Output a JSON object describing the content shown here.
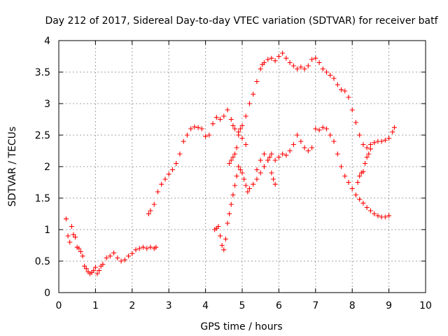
{
  "chart_data": {
    "type": "scatter",
    "title": "Day 212 of 2017, Sidereal Day-to-day VTEC variation (SDTVAR) for receiver batf",
    "xlabel": "GPS time / hours",
    "ylabel": "SDTVAR / TECUs",
    "xlim": [
      0,
      10
    ],
    "ylim": [
      0,
      4
    ],
    "xticks": [
      "0",
      "1",
      "2",
      "3",
      "4",
      "5",
      "6",
      "7",
      "8",
      "9",
      "10"
    ],
    "yticks": [
      "0",
      "0.5",
      "1",
      "1.5",
      "2",
      "2.5",
      "3",
      "3.5",
      "4"
    ],
    "grid": true,
    "marker": "+",
    "color": "#ff0000",
    "series": [
      {
        "x": [
          0.2,
          0.25,
          0.3,
          0.35,
          0.4,
          0.45,
          0.5,
          0.55,
          0.6,
          0.65,
          0.7,
          0.75,
          0.8,
          0.85,
          0.9,
          0.95,
          1.0,
          1.05,
          1.1,
          1.15,
          1.2,
          1.3,
          1.4,
          1.5,
          1.6,
          1.7,
          1.8,
          1.9,
          2.0,
          2.1,
          2.2,
          2.3,
          2.4,
          2.5,
          2.6,
          2.65
        ],
        "y": [
          1.17,
          0.9,
          0.8,
          1.05,
          0.92,
          0.88,
          0.72,
          0.7,
          0.65,
          0.58,
          0.42,
          0.38,
          0.33,
          0.3,
          0.32,
          0.35,
          0.4,
          0.3,
          0.35,
          0.42,
          0.45,
          0.55,
          0.58,
          0.63,
          0.55,
          0.5,
          0.52,
          0.58,
          0.62,
          0.68,
          0.7,
          0.72,
          0.7,
          0.72,
          0.7,
          0.72
        ]
      },
      {
        "x": [
          2.45,
          2.5,
          2.6,
          2.7,
          2.8,
          2.9,
          3.0,
          3.1,
          3.2,
          3.3,
          3.4,
          3.5,
          3.6,
          3.7,
          3.8,
          3.9,
          4.0,
          4.1,
          4.2,
          4.3,
          4.4,
          4.5,
          4.6,
          4.7,
          4.75,
          4.8,
          4.9,
          5.0,
          5.1
        ],
        "y": [
          1.25,
          1.3,
          1.4,
          1.6,
          1.72,
          1.8,
          1.88,
          1.95,
          2.05,
          2.2,
          2.4,
          2.5,
          2.6,
          2.63,
          2.62,
          2.6,
          2.48,
          2.5,
          2.68,
          2.78,
          2.75,
          2.8,
          2.9,
          2.75,
          2.65,
          2.6,
          2.55,
          2.45,
          2.35
        ]
      },
      {
        "x": [
          4.25,
          4.3,
          4.35,
          4.4,
          4.45,
          4.5,
          4.55,
          4.6,
          4.65,
          4.7,
          4.75,
          4.8,
          4.85,
          4.9,
          4.95,
          5.0,
          5.05,
          5.1,
          5.15,
          5.2,
          5.3,
          5.4,
          5.5,
          5.6,
          5.7,
          5.75,
          5.8,
          5.9,
          6.0,
          6.1,
          6.2,
          6.3,
          6.4,
          6.5,
          6.6,
          6.7,
          6.8,
          6.9,
          7.0,
          7.1,
          7.2,
          7.3,
          7.4,
          7.5,
          7.6,
          7.7,
          7.8,
          7.9,
          8.0,
          8.1,
          8.2,
          8.3,
          8.4,
          8.5,
          8.6,
          8.7,
          8.8,
          8.9,
          9.0
        ],
        "y": [
          1.0,
          1.02,
          1.05,
          0.9,
          0.75,
          0.68,
          0.85,
          1.1,
          1.25,
          1.4,
          1.55,
          1.7,
          1.85,
          2.0,
          1.95,
          1.9,
          1.8,
          1.7,
          1.6,
          1.65,
          1.72,
          1.8,
          1.9,
          2.0,
          2.1,
          2.15,
          2.2,
          2.1,
          2.15,
          2.2,
          2.18,
          2.25,
          2.35,
          2.5,
          2.4,
          2.3,
          2.25,
          2.3,
          2.6,
          2.58,
          2.62,
          2.6,
          2.5,
          2.4,
          2.2,
          2.0,
          1.85,
          1.75,
          1.65,
          1.55,
          1.48,
          1.42,
          1.35,
          1.3,
          1.25,
          1.22,
          1.2,
          1.2,
          1.22
        ]
      },
      {
        "x": [
          4.65,
          4.7,
          4.75,
          4.8,
          4.85,
          4.9,
          4.95,
          5.0,
          5.1,
          5.2,
          5.3,
          5.4,
          5.5,
          5.55,
          5.6,
          5.7,
          5.8,
          5.9,
          6.0,
          6.1,
          6.2,
          6.3,
          6.4,
          6.5,
          6.6,
          6.7,
          6.8,
          6.9,
          7.0,
          7.1,
          7.2,
          7.3,
          7.4,
          7.5,
          7.6,
          7.7,
          7.8,
          7.9,
          8.0,
          8.1,
          8.2,
          8.3,
          8.4,
          8.5,
          8.6,
          8.7,
          8.8,
          8.9,
          9.0,
          9.1,
          9.15
        ],
        "y": [
          2.05,
          2.1,
          2.15,
          2.2,
          2.3,
          2.5,
          2.6,
          2.65,
          2.8,
          3.0,
          3.15,
          3.35,
          3.55,
          3.62,
          3.65,
          3.7,
          3.72,
          3.68,
          3.75,
          3.8,
          3.72,
          3.65,
          3.6,
          3.55,
          3.58,
          3.55,
          3.6,
          3.7,
          3.72,
          3.65,
          3.55,
          3.5,
          3.45,
          3.4,
          3.3,
          3.22,
          3.2,
          3.1,
          2.9,
          2.7,
          2.5,
          2.35,
          2.3,
          2.35,
          2.38,
          2.4,
          2.4,
          2.42,
          2.45,
          2.55,
          2.62
        ]
      },
      {
        "x": [
          5.4,
          5.5,
          5.6,
          5.7,
          5.8,
          5.85,
          5.9
        ],
        "y": [
          1.95,
          2.1,
          2.2,
          2.1,
          1.9,
          1.8,
          1.72
        ]
      },
      {
        "x": [
          8.15,
          8.2,
          8.25,
          8.3,
          8.35,
          8.4,
          8.45,
          8.5
        ],
        "y": [
          1.75,
          1.85,
          1.9,
          1.92,
          2.05,
          2.15,
          2.2,
          2.28
        ]
      }
    ]
  }
}
